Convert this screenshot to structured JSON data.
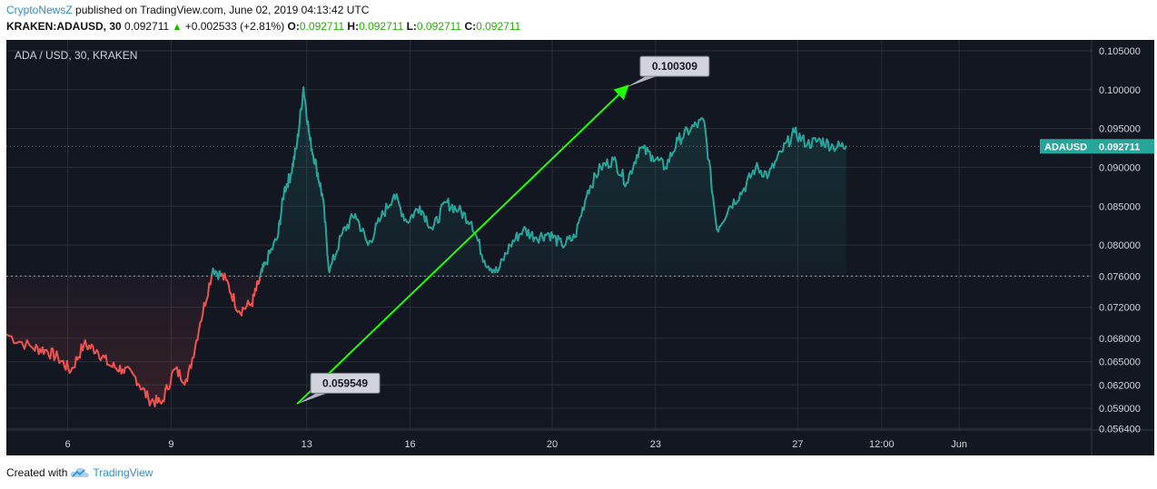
{
  "header": {
    "publisher": "CryptoNewsZ",
    "published_text": "published on TradingView.com, June 02, 2019 04:13:42 UTC",
    "symbol": "KRAKEN:ADAUSD, 30",
    "last": "0.092711",
    "change": "+0.002533 (+2.81%)",
    "o_label": "O:",
    "o_value": "0.092711",
    "h_label": "H:",
    "h_value": "0.092711",
    "l_label": "L:",
    "l_value": "0.092711",
    "c_label": "C:",
    "c_value": "0.092711"
  },
  "footer": {
    "created_with": "Created with",
    "brand": "TradingView"
  },
  "icons": {
    "change_arrow": "triangle-up-icon",
    "logo": "tradingview-cloud-icon"
  },
  "colors": {
    "background": "#131722",
    "grid": "#2a2e39",
    "up": "#26a69a",
    "down": "#ef5350",
    "arrow": "#1fff00",
    "axis_text": "#d1d4dc",
    "publisher_link": "#2e8fd6"
  },
  "chart_data": {
    "type": "line",
    "title": "ADA / USD, 30, KRAKEN",
    "price_label": "ADAUSD",
    "last_price": 0.092711,
    "baseline": 0.076,
    "yticks": [
      "0.105000",
      "0.100000",
      "0.095000",
      "0.090000",
      "0.085000",
      "0.080000",
      "0.076000",
      "0.072000",
      "0.068000",
      "0.065000",
      "0.062000",
      "0.059000",
      "0.056400"
    ],
    "xticks": [
      "6",
      "9",
      "13",
      "16",
      "20",
      "23",
      "27",
      "12:00",
      "Jun"
    ],
    "ylim": [
      0.0562,
      0.1064
    ],
    "x": [
      0,
      4,
      6,
      8,
      10,
      12,
      14,
      16,
      18,
      20,
      22,
      24,
      26,
      28,
      30,
      32,
      34,
      36,
      38,
      39,
      40,
      42,
      43,
      44,
      45,
      46,
      47,
      48,
      49,
      50,
      52,
      54,
      56,
      58,
      60,
      62,
      64,
      66,
      68,
      70,
      72,
      74,
      76,
      78,
      80,
      82,
      84,
      86,
      88,
      90,
      92,
      94,
      96,
      98,
      100,
      102,
      104,
      106,
      108,
      110,
      112,
      114,
      116,
      118,
      120,
      122,
      124,
      126,
      128,
      130
    ],
    "values": [
      0.0685,
      0.0668,
      0.0665,
      0.0655,
      0.0638,
      0.0672,
      0.0665,
      0.0645,
      0.064,
      0.063,
      0.0602,
      0.0596,
      0.064,
      0.0625,
      0.07,
      0.077,
      0.0755,
      0.0715,
      0.0725,
      0.075,
      0.0775,
      0.081,
      0.087,
      0.089,
      0.093,
      0.1003,
      0.0935,
      0.09,
      0.086,
      0.0765,
      0.0815,
      0.084,
      0.08,
      0.0835,
      0.0865,
      0.083,
      0.085,
      0.082,
      0.0855,
      0.0845,
      0.083,
      0.078,
      0.0765,
      0.08,
      0.082,
      0.081,
      0.0815,
      0.08,
      0.081,
      0.087,
      0.09,
      0.091,
      0.088,
      0.0925,
      0.0915,
      0.09,
      0.0935,
      0.095,
      0.096,
      0.082,
      0.085,
      0.087,
      0.09,
      0.089,
      0.092,
      0.0945,
      0.093,
      0.0935,
      0.0927,
      0.092711
    ],
    "annotations": [
      {
        "label": "0.059549",
        "x": 45,
        "value": 0.059549
      },
      {
        "label": "0.100309",
        "x": 96,
        "value": 0.100309
      }
    ],
    "trend_arrow": {
      "from_x": 45,
      "from_value": 0.059549,
      "to_x": 96,
      "to_value": 0.100309
    }
  }
}
